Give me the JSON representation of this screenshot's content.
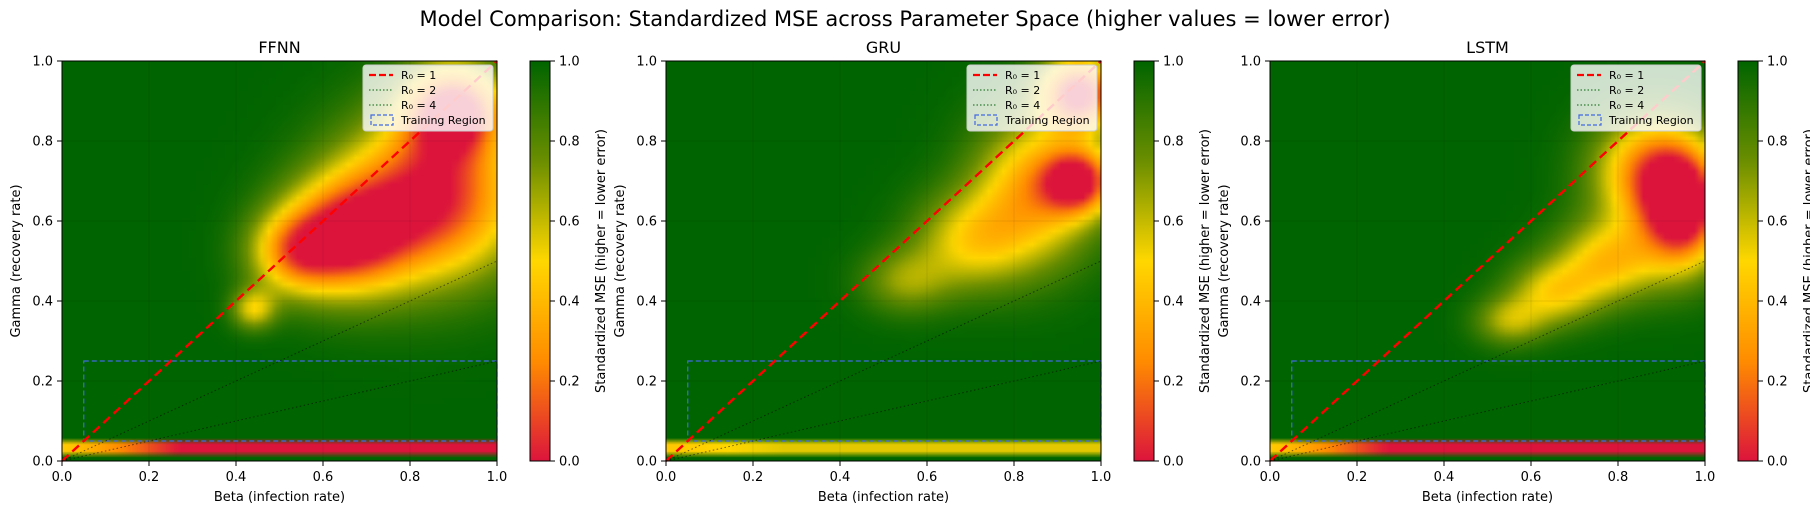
{
  "figure": {
    "suptitle": "Model Comparison: Standardized MSE across Parameter Space (higher values = lower error)"
  },
  "colors": {
    "low": "#dc143c",
    "mid_low": "#ff8c00",
    "mid": "#ffd700",
    "mid_high": "#6b8e00",
    "high": "#006400",
    "r0_1_line": "#ff0000",
    "r0_other_lines": "#000000",
    "training_region": "#4169e1"
  },
  "chart_data": [
    {
      "type": "heatmap",
      "title": "FFNN",
      "xlabel": "Beta (infection rate)",
      "ylabel": "Gamma (recovery rate)",
      "xlim": [
        0,
        1
      ],
      "ylim": [
        0,
        1
      ],
      "xticks": [
        "0.0",
        "0.2",
        "0.4",
        "0.6",
        "0.8",
        "1.0"
      ],
      "yticks": [
        "0.0",
        "0.2",
        "0.4",
        "0.6",
        "0.8",
        "1.0"
      ],
      "grid": true,
      "legend_position": "top-right",
      "legend": [
        "R₀ = 1",
        "R₀ = 2",
        "R₀ = 4",
        "Training Region"
      ],
      "reference_lines": [
        {
          "label": "R₀ = 1",
          "slope": 1,
          "style": "dashed",
          "color": "red"
        },
        {
          "label": "R₀ = 2",
          "slope": 0.5,
          "style": "dotted",
          "color": "black"
        },
        {
          "label": "R₀ = 4",
          "slope": 0.25,
          "style": "dotted",
          "color": "black"
        }
      ],
      "training_region": {
        "beta": [
          0.05,
          1.0
        ],
        "gamma": [
          0.05,
          0.25
        ]
      },
      "low_score_regions": [
        {
          "beta_center": 0.85,
          "gamma_center": 0.66,
          "beta_spread": 0.2,
          "gamma_spread": 0.2,
          "depth": 1.0
        },
        {
          "beta_center": 0.65,
          "gamma_center": 0.56,
          "beta_spread": 0.14,
          "gamma_spread": 0.14,
          "depth": 0.9
        },
        {
          "beta_center": 0.53,
          "gamma_center": 0.52,
          "beta_spread": 0.1,
          "gamma_spread": 0.1,
          "depth": 0.55
        },
        {
          "beta_center": 0.44,
          "gamma_center": 0.38,
          "beta_spread": 0.05,
          "gamma_spread": 0.05,
          "depth": 0.45
        },
        {
          "beta_center": 0.9,
          "gamma_center": 0.88,
          "beta_spread": 0.11,
          "gamma_spread": 0.11,
          "depth": 0.95
        }
      ],
      "bottom_band": {
        "gamma_range": [
          0.01,
          0.05
        ],
        "min_value": 0.0,
        "edge_value": 0.45
      },
      "colorbar": {
        "label": "Standardized MSE (higher = lower error)",
        "range": [
          0,
          1
        ],
        "ticks": [
          "0.0",
          "0.2",
          "0.4",
          "0.6",
          "0.8",
          "1.0"
        ]
      }
    },
    {
      "type": "heatmap",
      "title": "GRU",
      "xlabel": "Beta (infection rate)",
      "ylabel": "Gamma (recovery rate)",
      "xlim": [
        0,
        1
      ],
      "ylim": [
        0,
        1
      ],
      "xticks": [
        "0.0",
        "0.2",
        "0.4",
        "0.6",
        "0.8",
        "1.0"
      ],
      "yticks": [
        "0.0",
        "0.2",
        "0.4",
        "0.6",
        "0.8",
        "1.0"
      ],
      "grid": true,
      "legend_position": "top-right",
      "legend": [
        "R₀ = 1",
        "R₀ = 2",
        "R₀ = 4",
        "Training Region"
      ],
      "reference_lines": [
        {
          "label": "R₀ = 1",
          "slope": 1,
          "style": "dashed",
          "color": "red"
        },
        {
          "label": "R₀ = 2",
          "slope": 0.5,
          "style": "dotted",
          "color": "black"
        },
        {
          "label": "R₀ = 4",
          "slope": 0.25,
          "style": "dotted",
          "color": "black"
        }
      ],
      "training_region": {
        "beta": [
          0.05,
          1.0
        ],
        "gamma": [
          0.05,
          0.25
        ]
      },
      "low_score_regions": [
        {
          "beta_center": 0.95,
          "gamma_center": 0.92,
          "beta_spread": 0.09,
          "gamma_spread": 0.09,
          "depth": 1.0
        },
        {
          "beta_center": 0.95,
          "gamma_center": 0.7,
          "beta_spread": 0.08,
          "gamma_spread": 0.08,
          "depth": 0.85
        },
        {
          "beta_center": 0.85,
          "gamma_center": 0.68,
          "beta_spread": 0.14,
          "gamma_spread": 0.18,
          "depth": 0.65
        },
        {
          "beta_center": 0.7,
          "gamma_center": 0.55,
          "beta_spread": 0.13,
          "gamma_spread": 0.12,
          "depth": 0.45
        },
        {
          "beta_center": 0.55,
          "gamma_center": 0.45,
          "beta_spread": 0.1,
          "gamma_spread": 0.08,
          "depth": 0.3
        }
      ],
      "bottom_band": {
        "gamma_range": [
          0.01,
          0.05
        ],
        "min_value": 0.55,
        "edge_value": 0.45
      },
      "colorbar": {
        "label": "Standardized MSE (higher = lower error)",
        "range": [
          0,
          1
        ],
        "ticks": [
          "0.0",
          "0.2",
          "0.4",
          "0.6",
          "0.8",
          "1.0"
        ]
      }
    },
    {
      "type": "heatmap",
      "title": "LSTM",
      "xlabel": "Beta (infection rate)",
      "ylabel": "Gamma (recovery rate)",
      "xlim": [
        0,
        1
      ],
      "ylim": [
        0,
        1
      ],
      "xticks": [
        "0.0",
        "0.2",
        "0.4",
        "0.6",
        "0.8",
        "1.0"
      ],
      "yticks": [
        "0.0",
        "0.2",
        "0.4",
        "0.6",
        "0.8",
        "1.0"
      ],
      "grid": true,
      "legend_position": "top-right",
      "legend": [
        "R₀ = 1",
        "R₀ = 2",
        "R₀ = 4",
        "Training Region"
      ],
      "reference_lines": [
        {
          "label": "R₀ = 1",
          "slope": 1,
          "style": "dashed",
          "color": "red"
        },
        {
          "label": "R₀ = 2",
          "slope": 0.5,
          "style": "dotted",
          "color": "black"
        },
        {
          "label": "R₀ = 4",
          "slope": 0.25,
          "style": "dotted",
          "color": "black"
        }
      ],
      "training_region": {
        "beta": [
          0.05,
          1.0
        ],
        "gamma": [
          0.05,
          0.25
        ]
      },
      "low_score_regions": [
        {
          "beta_center": 0.95,
          "gamma_center": 0.62,
          "beta_spread": 0.09,
          "gamma_spread": 0.14,
          "depth": 1.0
        },
        {
          "beta_center": 0.88,
          "gamma_center": 0.72,
          "beta_spread": 0.13,
          "gamma_spread": 0.14,
          "depth": 0.8
        },
        {
          "beta_center": 0.78,
          "gamma_center": 0.5,
          "beta_spread": 0.12,
          "gamma_spread": 0.1,
          "depth": 0.55
        },
        {
          "beta_center": 0.65,
          "gamma_center": 0.42,
          "beta_spread": 0.1,
          "gamma_spread": 0.08,
          "depth": 0.45
        },
        {
          "beta_center": 0.55,
          "gamma_center": 0.35,
          "beta_spread": 0.08,
          "gamma_spread": 0.06,
          "depth": 0.35
        }
      ],
      "bottom_band": {
        "gamma_range": [
          0.01,
          0.05
        ],
        "min_value": 0.0,
        "edge_value": 0.45
      },
      "colorbar": {
        "label": "Standardized MSE (higher = lower error)",
        "range": [
          0,
          1
        ],
        "ticks": [
          "0.0",
          "0.2",
          "0.4",
          "0.6",
          "0.8",
          "1.0"
        ]
      }
    }
  ]
}
